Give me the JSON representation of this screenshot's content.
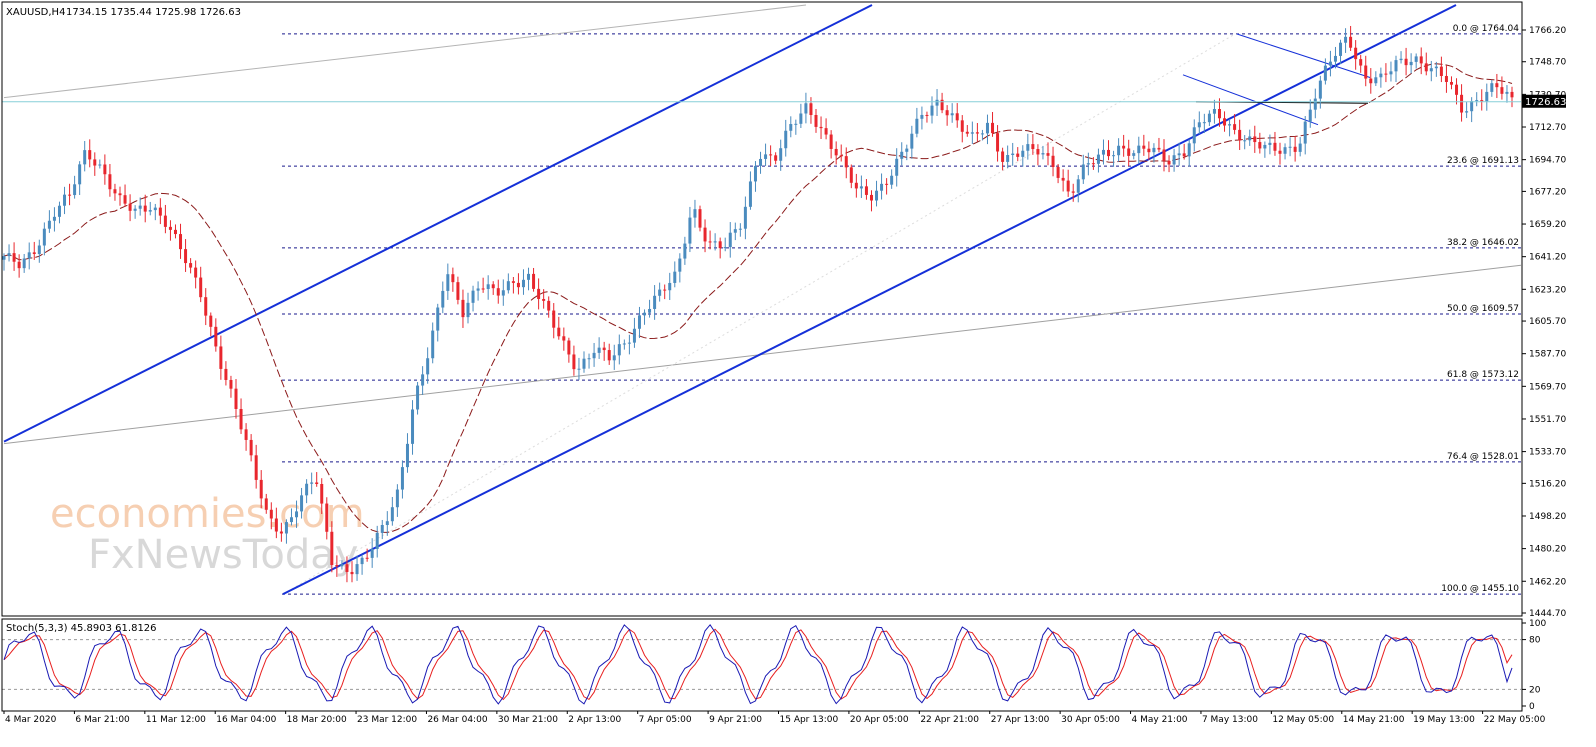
{
  "header": {
    "symbol_label": "XAUUSD,H4",
    "ohlc_label": "1734.15 1735.44 1725.98 1726.63"
  },
  "indicator": {
    "label": "Stoch(5,3,3) 45.8903 61.8126",
    "main_value": 45.8903,
    "signal_value": 61.8126
  },
  "watermark": {
    "line1": "economies.com",
    "line2": "FxNewsToday"
  },
  "colors": {
    "bull": "#4a8bbe",
    "bear": "#e8262d",
    "channel": "#1530d8",
    "fib": "#1a1a8c",
    "ma": "#8b1a1a",
    "stoch_main": "#1a1ab4",
    "stoch_signal": "#e82020",
    "price_tag_bg": "#000000"
  },
  "chart_data": [
    {
      "type": "candlestick",
      "symbol": "XAUUSD",
      "timeframe": "H4",
      "current_price": 1726.63,
      "current_price_label": "1726.63",
      "ylim": [
        1440.6,
        1779.0
      ],
      "y_ticks": [
        "1766.20",
        "1748.70",
        "1730.70",
        "1712.70",
        "1694.70",
        "1677.20",
        "1659.20",
        "1641.20",
        "1623.20",
        "1605.70",
        "1587.70",
        "1569.70",
        "1551.70",
        "1533.70",
        "1516.20",
        "1498.20",
        "1480.20",
        "1462.20",
        "1444.70"
      ],
      "x_ticks": [
        "4 Mar 2020",
        "6 Mar 21:00",
        "11 Mar 12:00",
        "16 Mar 04:00",
        "18 Mar 20:00",
        "23 Mar 12:00",
        "26 Mar 04:00",
        "30 Mar 21:00",
        "2 Apr 13:00",
        "7 Apr 05:00",
        "9 Apr 21:00",
        "15 Apr 13:00",
        "20 Apr 05:00",
        "22 Apr 21:00",
        "27 Apr 13:00",
        "30 Apr 05:00",
        "4 May 21:00",
        "7 May 13:00",
        "12 May 05:00",
        "14 May 21:00",
        "19 May 13:00",
        "22 May 05:00"
      ],
      "fibonacci": [
        {
          "label": "0.0 @ 1764.04",
          "price": 1764.04
        },
        {
          "label": "23.6 @ 1691.13",
          "price": 1691.13
        },
        {
          "label": "38.2 @ 1646.02",
          "price": 1646.02
        },
        {
          "label": "50.0 @ 1609.57",
          "price": 1609.57
        },
        {
          "label": "61.8 @ 1573.12",
          "price": 1573.12
        },
        {
          "label": "76.4 @ 1528.01",
          "price": 1528.01
        },
        {
          "label": "100.0 @ 1455.10",
          "price": 1455.1
        }
      ],
      "approx_closes": [
        1640,
        1636,
        1648,
        1665,
        1674,
        1700,
        1690,
        1672,
        1665,
        1670,
        1660,
        1640,
        1620,
        1590,
        1562,
        1530,
        1500,
        1490,
        1505,
        1520,
        1475,
        1468,
        1472,
        1490,
        1512,
        1560,
        1590,
        1635,
        1612,
        1625,
        1620,
        1628,
        1630,
        1612,
        1595,
        1580,
        1590,
        1584,
        1595,
        1612,
        1620,
        1630,
        1670,
        1648,
        1646,
        1660,
        1700,
        1694,
        1712,
        1725,
        1710,
        1694,
        1678,
        1676,
        1685,
        1700,
        1720,
        1728,
        1716,
        1705,
        1715,
        1695,
        1698,
        1700,
        1694,
        1675,
        1690,
        1698,
        1702,
        1698,
        1700,
        1695,
        1700,
        1715,
        1720,
        1712,
        1705,
        1700,
        1700,
        1704,
        1730,
        1750,
        1764,
        1740,
        1738,
        1748,
        1752,
        1745,
        1738,
        1722,
        1730,
        1735,
        1726
      ]
    },
    {
      "type": "line",
      "name": "Stoch(5,3,3)",
      "ylim": [
        0,
        100
      ],
      "y_ticks": [
        "100",
        "80",
        "20",
        "0"
      ],
      "levels": [
        20,
        80
      ]
    }
  ]
}
